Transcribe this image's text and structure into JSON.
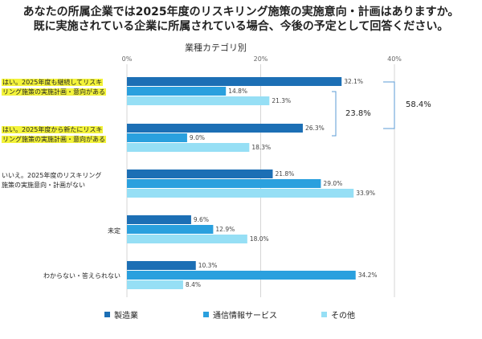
{
  "title_line1": "あなたの所属企業では2025年度のリスキリング施策の実施意向・計画はありますか。",
  "title_line2": "既に実施されている企業に所属されている場合、今後の予定として回答ください。",
  "chart_data": {
    "type": "bar",
    "orientation": "horizontal",
    "subtitle": "業種カテゴリ別",
    "xlim": [
      0,
      40
    ],
    "x_ticks": [
      "0%",
      "20%",
      "40%"
    ],
    "categories": [
      [
        "はい。2025年度も継続してリスキ",
        "リング施策の実施計画・意向がある"
      ],
      [
        "はい。2025年度から新たにリスキ",
        "リング施策の実施計画・意向がある"
      ],
      [
        "いいえ。2025年度のリスキリング",
        "施策の実施意向・計画がない"
      ],
      [
        "未定"
      ],
      [
        "わからない・答えられない"
      ]
    ],
    "highlighted_categories": [
      0,
      1
    ],
    "series": [
      {
        "name": "製造業",
        "color": "#1c6fb5",
        "values": [
          32.1,
          26.3,
          21.8,
          9.6,
          10.3
        ]
      },
      {
        "name": "通信情報サービス",
        "color": "#2aa0de",
        "values": [
          14.8,
          9.0,
          29.0,
          12.9,
          34.2
        ]
      },
      {
        "name": "その他",
        "color": "#96dff5",
        "values": [
          21.3,
          18.3,
          33.9,
          18.0,
          8.4
        ]
      }
    ],
    "value_labels": [
      [
        "32.1%",
        "14.8%",
        "21.3%"
      ],
      [
        "26.3%",
        "9.0%",
        "18.3%"
      ],
      [
        "21.8%",
        "29.0%",
        "33.9%"
      ],
      [
        "9.6%",
        "12.9%",
        "18.0%"
      ],
      [
        "10.3%",
        "34.2%",
        "8.4%"
      ]
    ],
    "annotations": {
      "inner_bracket": "23.8%",
      "outer_bracket": "58.4%"
    },
    "grid": true,
    "legend_position": "bottom"
  }
}
